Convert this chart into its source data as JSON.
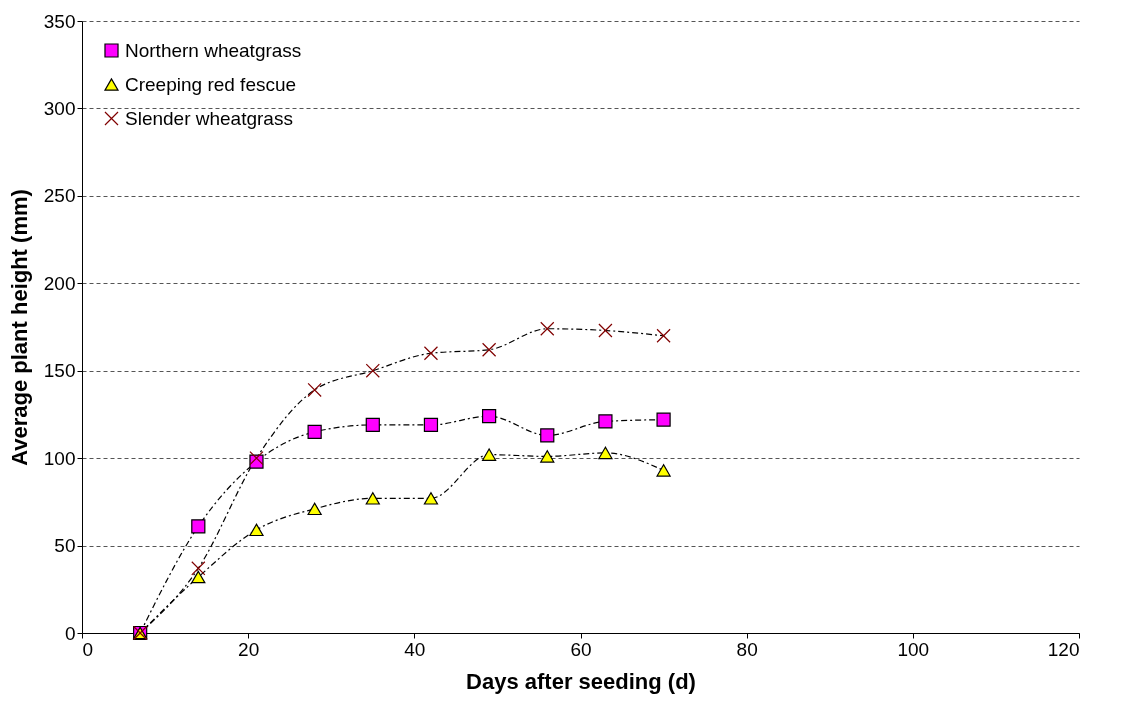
{
  "chart_data": {
    "type": "line",
    "xlabel": "Days after seeding (d)",
    "ylabel": "Average plant height (mm)",
    "x": [
      7,
      14,
      21,
      28,
      35,
      42,
      49,
      56,
      63,
      70
    ],
    "series": [
      {
        "name": "Northern wheatgrass",
        "color": "#ff00ff",
        "marker": "square",
        "line_style": "dashed",
        "values": [
          0,
          61,
          98,
          115,
          119,
          119,
          124,
          113,
          121,
          122
        ]
      },
      {
        "name": "Creeping red fescue",
        "color": "#ffff00",
        "marker": "triangle",
        "line_style": "dashed",
        "values": [
          0,
          32,
          59,
          71,
          77,
          77,
          102,
          101,
          103,
          93
        ]
      },
      {
        "name": "Slender wheatgrass",
        "color": "#800000",
        "marker": "cross",
        "line_style": "dashed",
        "values": [
          0,
          37,
          100,
          139,
          150,
          160,
          162,
          174,
          173,
          170
        ]
      }
    ],
    "xlim": [
      0,
      120
    ],
    "xticks": [
      0,
      20,
      40,
      60,
      80,
      100,
      120
    ],
    "ylim": [
      0,
      350
    ],
    "yticks": [
      0,
      50,
      100,
      150,
      200,
      250,
      300,
      350
    ],
    "grid": "y",
    "legend": "top left"
  }
}
